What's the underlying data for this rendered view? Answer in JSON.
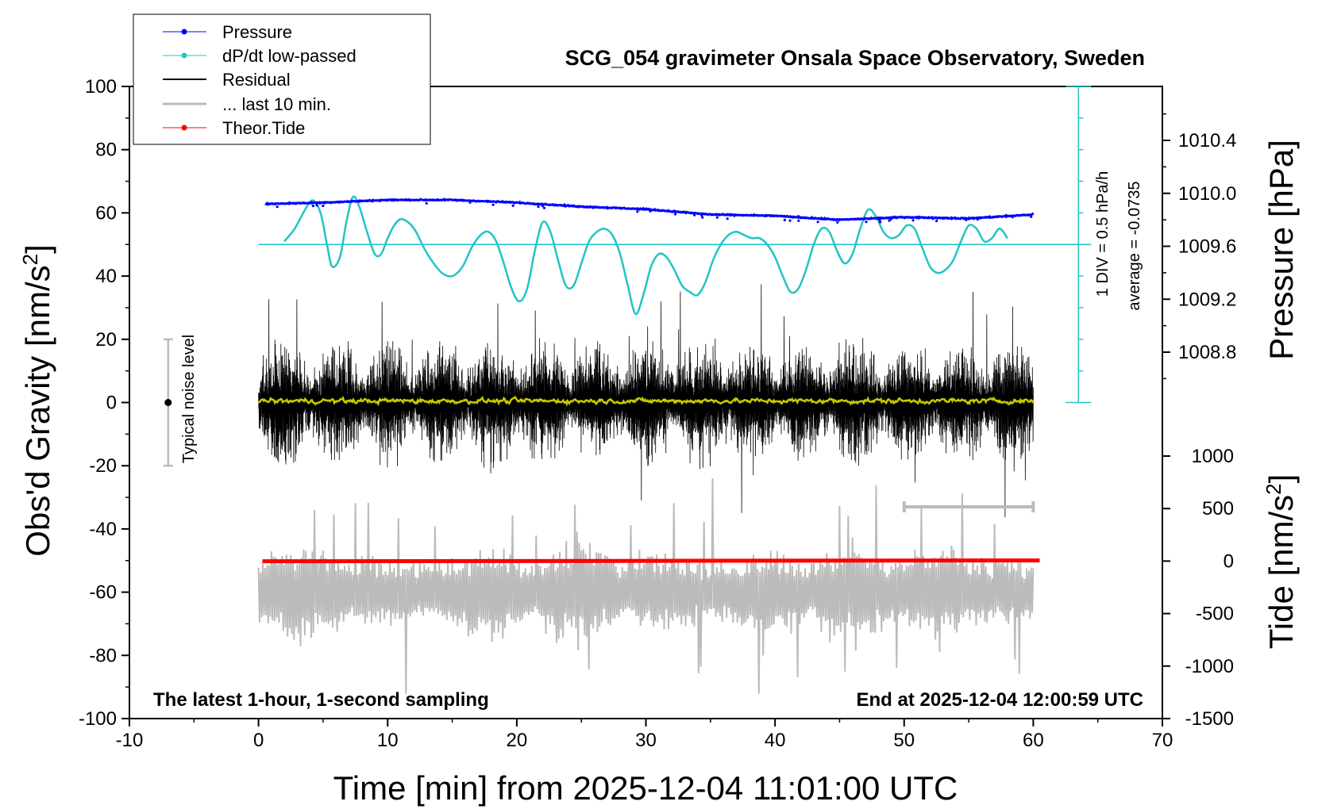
{
  "chart_data": {
    "type": "line",
    "title": "SCG_054 gravimeter Onsala Space Observatory, Sweden",
    "xlabel": "Time [min] from 2025-12-04 11:01:00 UTC",
    "ylabel": "Obs'd Gravity [nm/s",
    "ylabel_sup": "2",
    "ylabel_close": "]",
    "y2label": "Pressure [hPa]",
    "y3label": "Tide [nm/s",
    "y3label_sup": "2",
    "y3label_close": "]",
    "xlim": [
      -10,
      70
    ],
    "ylim": [
      -100,
      100
    ],
    "x_ticks": [
      "-10",
      "0",
      "10",
      "20",
      "30",
      "40",
      "50",
      "60",
      "70"
    ],
    "y_ticks": [
      "-100",
      "-80",
      "-60",
      "-40",
      "-20",
      "0",
      "20",
      "40",
      "60",
      "80",
      "100"
    ],
    "pressure_ticks": [
      "1008.8",
      "1009.2",
      "1009.6",
      "1010.0",
      "1010.4"
    ],
    "tide_ticks": [
      "-1500",
      "-1000",
      "-500",
      "0",
      "500",
      "1000"
    ],
    "annotation_bottom_left": "The latest 1-hour, 1-second sampling",
    "annotation_bottom_right": "End at 2025-12-04 12:00:59 UTC",
    "dpdt_scale_label": "1 DIV = 0.5 hPa/h",
    "dpdt_average_label": "average = -0.0735",
    "noise_label": "Typical noise level",
    "noise_level": {
      "x": -7,
      "center": 0,
      "half_range": 20
    },
    "legend": [
      {
        "name": "Pressure",
        "color": "#0000ff",
        "marker": true
      },
      {
        "name": "dP/dt low-passed",
        "color": "#22c4c4",
        "marker": true
      },
      {
        "name": "Residual",
        "color": "#000000",
        "marker": false
      },
      {
        "name": "... last 10 min.",
        "color": "#bbbbbb",
        "marker": false
      },
      {
        "name": "Theor.Tide",
        "color": "#ff0000",
        "marker": true
      }
    ],
    "colors": {
      "pressure": "#0000ff",
      "dpdt": "#22c4c4",
      "residual": "#000000",
      "last10": "#bbbbbb",
      "lowpass": "#c8c800",
      "tide": "#ff0000"
    },
    "series": {
      "pressure": {
        "x": [
          0.5,
          5,
          10,
          15,
          20,
          25,
          30,
          35,
          40,
          45,
          50,
          55,
          60
        ],
        "values": [
          1009.92,
          1009.93,
          1009.95,
          1009.95,
          1009.93,
          1009.9,
          1009.88,
          1009.84,
          1009.83,
          1009.8,
          1009.82,
          1009.81,
          1009.84
        ]
      },
      "dpdt": {
        "baseline_y": 50,
        "x": [
          2.0,
          2.8,
          3.6,
          4.2,
          4.8,
          5.3,
          5.7,
          6.3,
          6.8,
          7.3,
          7.8,
          8.4,
          9.0,
          9.5,
          10.0,
          10.5,
          11.0,
          11.6,
          12.2,
          12.8,
          13.4,
          14.2,
          15.0,
          15.8,
          16.5,
          17.2,
          17.8,
          18.4,
          19.0,
          19.6,
          20.2,
          20.8,
          21.4,
          22.0,
          22.6,
          23.2,
          23.8,
          24.4,
          25.0,
          25.6,
          26.2,
          26.8,
          27.4,
          28.0,
          28.6,
          29.2,
          29.8,
          30.4,
          31.0,
          31.6,
          32.2,
          32.8,
          33.4,
          34.0,
          34.6,
          35.2,
          35.8,
          36.4,
          37.0,
          37.6,
          38.2,
          38.8,
          39.4,
          40.0,
          40.6,
          41.2,
          41.8,
          42.4,
          43.0,
          43.6,
          44.2,
          44.8,
          45.4,
          46.0,
          46.6,
          47.2,
          47.8,
          48.4,
          49.0,
          49.6,
          50.2,
          50.8,
          51.4,
          52.0,
          52.6,
          53.2,
          53.8,
          54.4,
          55.0,
          55.6,
          56.2,
          56.8,
          57.4,
          58.0
        ],
        "values": [
          51,
          55,
          61,
          64,
          60,
          50,
          43,
          46,
          57,
          65,
          62,
          54,
          47,
          47,
          52,
          56,
          58,
          57,
          54,
          49,
          45,
          41,
          40,
          43,
          49,
          53,
          54,
          51,
          44,
          36,
          32,
          36,
          48,
          57,
          54,
          45,
          37,
          37,
          44,
          51,
          54,
          55,
          53,
          47,
          37,
          28,
          34,
          43,
          47,
          46,
          42,
          37,
          35,
          34,
          38,
          45,
          50,
          53,
          54,
          53,
          52,
          52,
          50,
          46,
          40,
          35,
          36,
          42,
          50,
          55,
          54,
          48,
          44,
          47,
          55,
          61,
          59,
          54,
          52,
          53,
          56,
          55,
          49,
          43,
          41,
          42,
          45,
          51,
          56,
          55,
          51,
          52,
          55,
          52
        ]
      },
      "residual": {
        "x_start": 0,
        "x_end": 60,
        "typical_amplitude": 15,
        "peak_amplitude": 40
      },
      "last10": {
        "x_start": 0,
        "x_end": 60,
        "center_y": -60,
        "typical_amplitude": 15,
        "peak_amplitude": 38,
        "bracket_x": [
          50,
          60
        ],
        "bracket_y": -33
      },
      "lowpass": {
        "x_start": 0,
        "x_end": 60,
        "center_y": 0.5
      },
      "tide": {
        "x": [
          0.3,
          60.5
        ],
        "values": [
          -2,
          6
        ]
      }
    }
  }
}
